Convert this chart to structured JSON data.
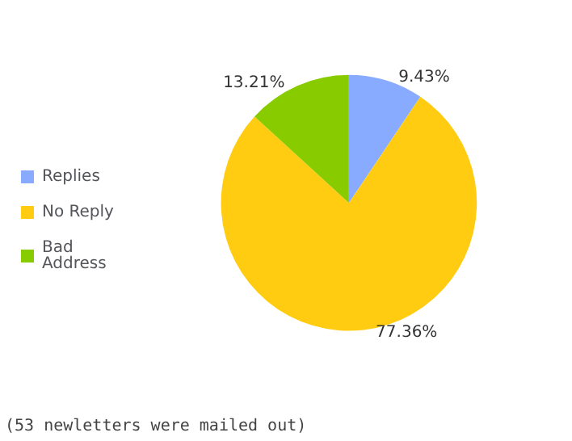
{
  "chart_data": {
    "type": "pie",
    "categories": [
      "Replies",
      "No Reply",
      "Bad Address"
    ],
    "values": [
      9.43,
      77.36,
      13.21
    ],
    "colors": [
      "#88aaff",
      "#ffcc11",
      "#88cc00"
    ],
    "value_labels": [
      "9.43%",
      "77.36%",
      "13.21%"
    ],
    "legend": "left",
    "annotations": [
      "(53 newletters were mailed out)"
    ]
  }
}
